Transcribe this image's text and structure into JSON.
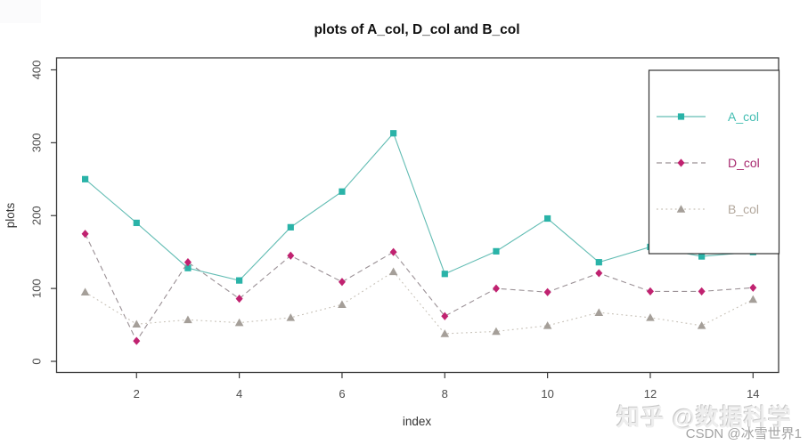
{
  "chart_data": {
    "type": "line",
    "title": "plots of A_col, D_col and B_col",
    "xlabel": "index",
    "ylabel": "plots",
    "x": [
      1,
      2,
      3,
      4,
      5,
      6,
      7,
      8,
      9,
      10,
      11,
      12,
      13,
      14
    ],
    "xticks": [
      2,
      4,
      6,
      8,
      10,
      12,
      14
    ],
    "yticks": [
      0,
      100,
      200,
      300,
      400
    ],
    "xlim": [
      0.45,
      14.5
    ],
    "ylim": [
      0,
      400
    ],
    "grid": false,
    "legend_position": "top-right",
    "series": [
      {
        "name": "A_col",
        "marker": "square",
        "line_style": "solid",
        "marker_color": "#2ab3a8",
        "line_color": "#63bdb4",
        "label_color": "#43bdb2",
        "values": [
          250,
          190,
          128,
          111,
          184,
          233,
          313,
          120,
          151,
          196,
          136,
          157,
          144,
          150
        ]
      },
      {
        "name": "D_col",
        "marker": "diamond",
        "line_style": "dashed",
        "marker_color": "#c02270",
        "line_color": "#9a9095",
        "label_color": "#a82a70",
        "values": [
          175,
          28,
          136,
          86,
          145,
          109,
          150,
          62,
          100,
          95,
          121,
          96,
          96,
          101
        ]
      },
      {
        "name": "B_col",
        "marker": "triangle",
        "line_style": "dotted",
        "marker_color": "#a59f99",
        "line_color": "#c6c0b6",
        "label_color": "#b3a89d",
        "values": [
          95,
          51,
          57,
          53,
          60,
          78,
          123,
          38,
          41,
          49,
          67,
          60,
          49,
          85
        ]
      }
    ]
  },
  "colors": {
    "box_stroke": "#3a3a3a",
    "tick_text": "#4d4d4d",
    "title_text": "#111111",
    "axis_label_text": "#333333",
    "legend_fill": "#ffffff",
    "legend_stroke": "#333333"
  },
  "watermarks": {
    "zhihu": "知乎 @数据科学",
    "csdn": "CSDN @冰雪世界1"
  }
}
